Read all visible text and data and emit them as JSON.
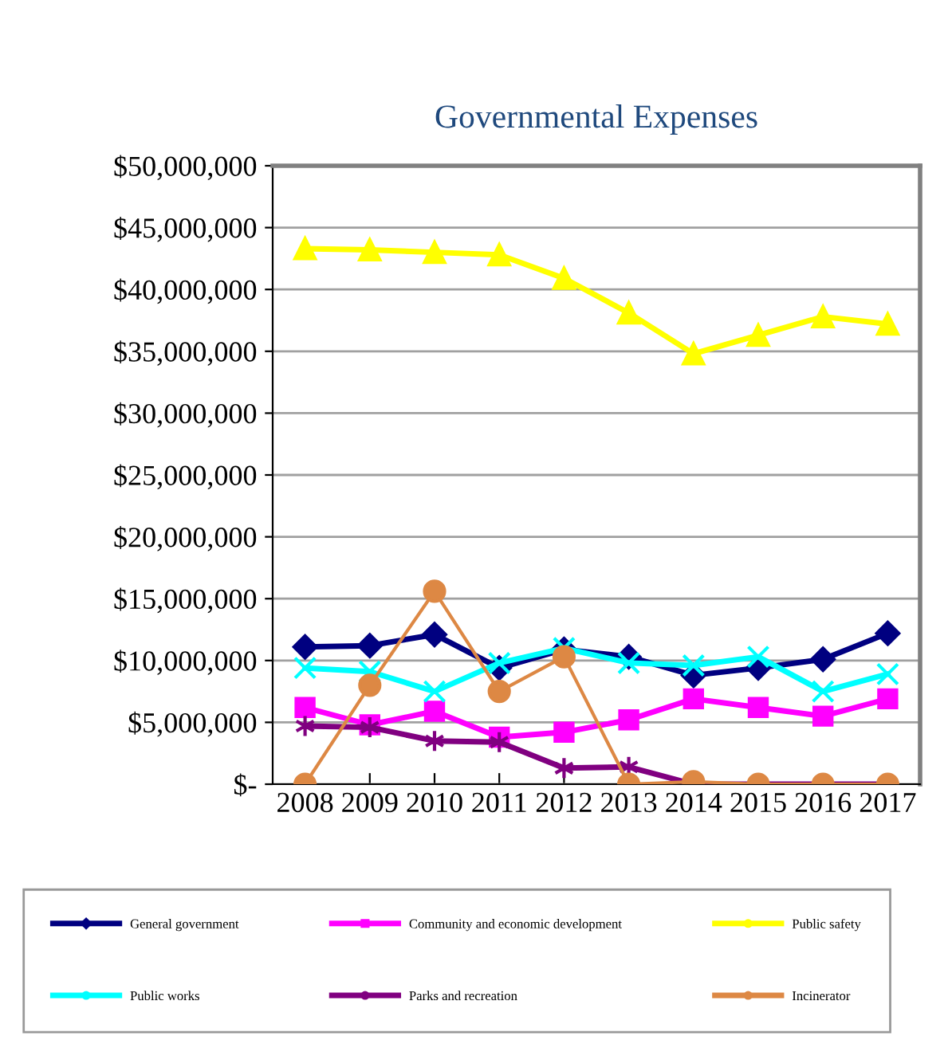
{
  "chart_data": {
    "type": "line",
    "title": "Governmental Expenses",
    "categories": [
      "2008",
      "2009",
      "2010",
      "2011",
      "2012",
      "2013",
      "2014",
      "2015",
      "2016",
      "2017"
    ],
    "series": [
      {
        "name": "General government",
        "color": "#000080",
        "marker": "diamond",
        "values": [
          11100000,
          11200000,
          12100000,
          9400000,
          10900000,
          10300000,
          8800000,
          9400000,
          10100000,
          12200000
        ]
      },
      {
        "name": "Community and economic development",
        "color": "#ff00ff",
        "marker": "square",
        "values": [
          6200000,
          4800000,
          5900000,
          3800000,
          4200000,
          5200000,
          6900000,
          6200000,
          5500000,
          6900000
        ]
      },
      {
        "name": "Public safety",
        "color": "#ffff00",
        "marker": "triangle",
        "values": [
          43300000,
          43200000,
          43000000,
          42800000,
          40900000,
          38100000,
          34800000,
          36300000,
          37800000,
          37200000
        ]
      },
      {
        "name": "Public works",
        "color": "#00ffff",
        "marker": "cross",
        "values": [
          9400000,
          9100000,
          7500000,
          9800000,
          11000000,
          9800000,
          9600000,
          10300000,
          7500000,
          8900000
        ]
      },
      {
        "name": "Parks and recreation",
        "color": "#800080",
        "marker": "cross",
        "values": [
          4700000,
          4600000,
          3500000,
          3400000,
          1300000,
          1400000,
          0,
          0,
          0,
          0
        ]
      },
      {
        "name": "Incinerator",
        "color": "#dd8844",
        "marker": "circle",
        "values": [
          0,
          8000000,
          15600000,
          7500000,
          10300000,
          0,
          200000,
          0,
          0,
          0
        ]
      }
    ],
    "ylim": [
      0,
      50000000
    ],
    "yticks": [
      {
        "value": 0,
        "label": "$-"
      },
      {
        "value": 5000000,
        "label": "$5,000,000"
      },
      {
        "value": 10000000,
        "label": "$10,000,000"
      },
      {
        "value": 15000000,
        "label": "$15,000,000"
      },
      {
        "value": 20000000,
        "label": "$20,000,000"
      },
      {
        "value": 25000000,
        "label": "$25,000,000"
      },
      {
        "value": 30000000,
        "label": "$30,000,000"
      },
      {
        "value": 35000000,
        "label": "$35,000,000"
      },
      {
        "value": 40000000,
        "label": "$40,000,000"
      },
      {
        "value": 45000000,
        "label": "$45,000,000"
      },
      {
        "value": 50000000,
        "label": "$50,000,000"
      }
    ],
    "grid": "y",
    "legend": "bottom",
    "line_style": "solid"
  }
}
